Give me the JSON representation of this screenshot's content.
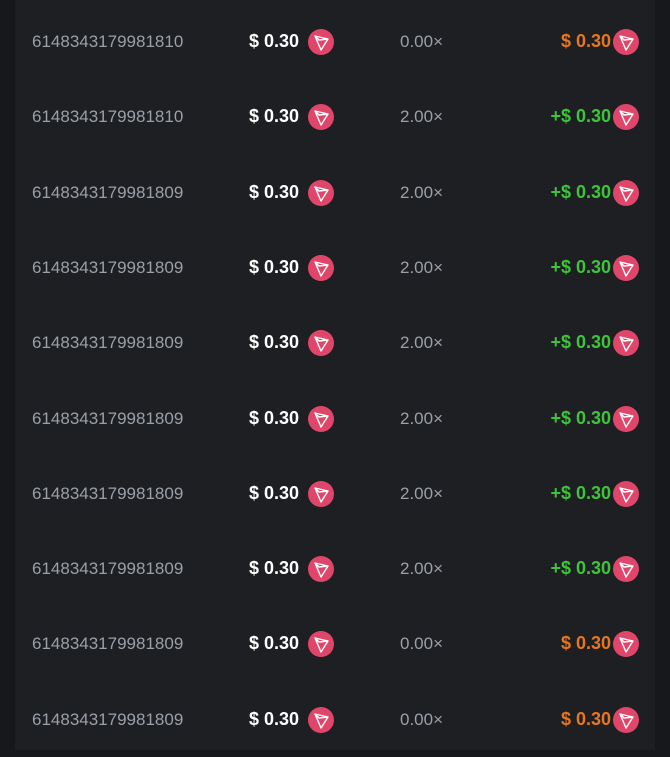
{
  "colors": {
    "win": "#3ec43a",
    "loss": "#e8761e",
    "coin": "#e0466a"
  },
  "coin_icon": "tron-icon",
  "rows": [
    {
      "id": "6148343179981810",
      "bet": "$ 0.30",
      "multiplier": "0.00×",
      "payout": "$ 0.30",
      "status": "loss"
    },
    {
      "id": "6148343179981810",
      "bet": "$ 0.30",
      "multiplier": "2.00×",
      "payout": "+$ 0.30",
      "status": "win"
    },
    {
      "id": "6148343179981809",
      "bet": "$ 0.30",
      "multiplier": "2.00×",
      "payout": "+$ 0.30",
      "status": "win"
    },
    {
      "id": "6148343179981809",
      "bet": "$ 0.30",
      "multiplier": "2.00×",
      "payout": "+$ 0.30",
      "status": "win"
    },
    {
      "id": "6148343179981809",
      "bet": "$ 0.30",
      "multiplier": "2.00×",
      "payout": "+$ 0.30",
      "status": "win"
    },
    {
      "id": "6148343179981809",
      "bet": "$ 0.30",
      "multiplier": "2.00×",
      "payout": "+$ 0.30",
      "status": "win"
    },
    {
      "id": "6148343179981809",
      "bet": "$ 0.30",
      "multiplier": "2.00×",
      "payout": "+$ 0.30",
      "status": "win"
    },
    {
      "id": "6148343179981809",
      "bet": "$ 0.30",
      "multiplier": "2.00×",
      "payout": "+$ 0.30",
      "status": "win"
    },
    {
      "id": "6148343179981809",
      "bet": "$ 0.30",
      "multiplier": "0.00×",
      "payout": "$ 0.30",
      "status": "loss"
    },
    {
      "id": "6148343179981809",
      "bet": "$ 0.30",
      "multiplier": "0.00×",
      "payout": "$ 0.30",
      "status": "loss"
    }
  ]
}
